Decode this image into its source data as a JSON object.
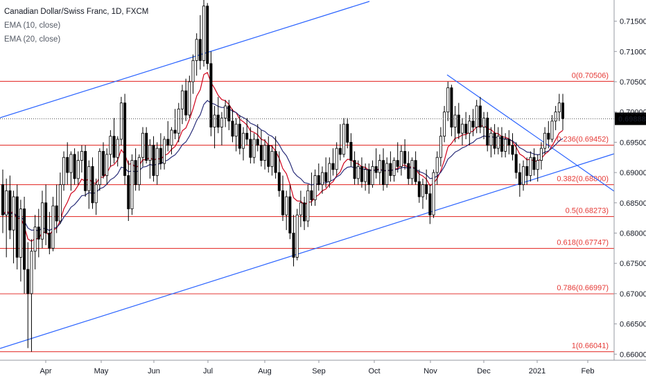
{
  "legend": {
    "symbol_title": "Canadian Dollar/Swiss Franc, 1D, FXCM",
    "ema_fast": "EMA (10, close)",
    "ema_slow": "EMA (20, close)"
  },
  "colors": {
    "up_candle": "#ffffff",
    "down_candle": "#000000",
    "candle_border": "#000000",
    "ema_fast": "#d0021b",
    "ema_slow": "#2a2e7a",
    "fib_lines": "#e53935",
    "trend_lines": "#2962ff",
    "price_label_bg": "#000000",
    "price_label_text": "#ffffff"
  },
  "chart_data": {
    "type": "candlestick",
    "title": "Canadian Dollar/Swiss Franc, 1D, FXCM",
    "ylim": [
      0.659,
      0.7185
    ],
    "y_ticks": [
      "0.71500",
      "0.71000",
      "0.70500",
      "0.70000",
      "0.69500",
      "0.69000",
      "0.68500",
      "0.68000",
      "0.67500",
      "0.67000",
      "0.66500",
      "0.66000"
    ],
    "x_tick_labels": [
      "Apr",
      "May",
      "Jun",
      "Jul",
      "Aug",
      "Sep",
      "Oct",
      "Nov",
      "Dec",
      "2021",
      "Feb"
    ],
    "last_price": "0.69888",
    "fib_levels": [
      {
        "label": "0(0.70506)",
        "value": 0.70506
      },
      {
        "label": "0.236(0.69452)",
        "value": 0.69452
      },
      {
        "label": "0.382(0.68800)",
        "value": 0.688
      },
      {
        "label": "0.5(0.68273)",
        "value": 0.68273
      },
      {
        "label": "0.618(0.67747)",
        "value": 0.67747
      },
      {
        "label": "0.786(0.66997)",
        "value": 0.66997
      },
      {
        "label": "1(0.66041)",
        "value": 0.66041
      }
    ],
    "candles": [
      {
        "o": 0.688,
        "h": 0.6905,
        "l": 0.68,
        "c": 0.683
      },
      {
        "o": 0.683,
        "h": 0.689,
        "l": 0.676,
        "c": 0.687
      },
      {
        "o": 0.687,
        "h": 0.6895,
        "l": 0.679,
        "c": 0.6805
      },
      {
        "o": 0.6805,
        "h": 0.687,
        "l": 0.675,
        "c": 0.686
      },
      {
        "o": 0.686,
        "h": 0.688,
        "l": 0.674,
        "c": 0.676
      },
      {
        "o": 0.676,
        "h": 0.6855,
        "l": 0.672,
        "c": 0.684
      },
      {
        "o": 0.684,
        "h": 0.686,
        "l": 0.67,
        "c": 0.674
      },
      {
        "o": 0.674,
        "h": 0.6785,
        "l": 0.661,
        "c": 0.67
      },
      {
        "o": 0.67,
        "h": 0.679,
        "l": 0.6604,
        "c": 0.677
      },
      {
        "o": 0.677,
        "h": 0.683,
        "l": 0.674,
        "c": 0.681
      },
      {
        "o": 0.681,
        "h": 0.684,
        "l": 0.676,
        "c": 0.679
      },
      {
        "o": 0.679,
        "h": 0.687,
        "l": 0.6775,
        "c": 0.685
      },
      {
        "o": 0.685,
        "h": 0.688,
        "l": 0.678,
        "c": 0.68
      },
      {
        "o": 0.68,
        "h": 0.6835,
        "l": 0.6765,
        "c": 0.6775
      },
      {
        "o": 0.6775,
        "h": 0.686,
        "l": 0.677,
        "c": 0.6845
      },
      {
        "o": 0.6845,
        "h": 0.688,
        "l": 0.68,
        "c": 0.682
      },
      {
        "o": 0.682,
        "h": 0.69,
        "l": 0.6815,
        "c": 0.688
      },
      {
        "o": 0.688,
        "h": 0.6935,
        "l": 0.687,
        "c": 0.6925
      },
      {
        "o": 0.6925,
        "h": 0.695,
        "l": 0.688,
        "c": 0.69
      },
      {
        "o": 0.69,
        "h": 0.6935,
        "l": 0.687,
        "c": 0.693
      },
      {
        "o": 0.693,
        "h": 0.694,
        "l": 0.688,
        "c": 0.689
      },
      {
        "o": 0.689,
        "h": 0.6935,
        "l": 0.688,
        "c": 0.692
      },
      {
        "o": 0.692,
        "h": 0.6945,
        "l": 0.69,
        "c": 0.6935
      },
      {
        "o": 0.6935,
        "h": 0.6945,
        "l": 0.686,
        "c": 0.687
      },
      {
        "o": 0.687,
        "h": 0.692,
        "l": 0.684,
        "c": 0.691
      },
      {
        "o": 0.691,
        "h": 0.6925,
        "l": 0.684,
        "c": 0.685
      },
      {
        "o": 0.685,
        "h": 0.689,
        "l": 0.683,
        "c": 0.688
      },
      {
        "o": 0.688,
        "h": 0.694,
        "l": 0.687,
        "c": 0.6935
      },
      {
        "o": 0.6935,
        "h": 0.695,
        "l": 0.689,
        "c": 0.6895
      },
      {
        "o": 0.6895,
        "h": 0.694,
        "l": 0.688,
        "c": 0.693
      },
      {
        "o": 0.693,
        "h": 0.697,
        "l": 0.691,
        "c": 0.696
      },
      {
        "o": 0.696,
        "h": 0.699,
        "l": 0.6915,
        "c": 0.6925
      },
      {
        "o": 0.6925,
        "h": 0.696,
        "l": 0.691,
        "c": 0.6955
      },
      {
        "o": 0.6955,
        "h": 0.7025,
        "l": 0.6945,
        "c": 0.7015
      },
      {
        "o": 0.7015,
        "h": 0.703,
        "l": 0.688,
        "c": 0.6895
      },
      {
        "o": 0.6895,
        "h": 0.692,
        "l": 0.682,
        "c": 0.684
      },
      {
        "o": 0.684,
        "h": 0.693,
        "l": 0.683,
        "c": 0.692
      },
      {
        "o": 0.692,
        "h": 0.694,
        "l": 0.687,
        "c": 0.688
      },
      {
        "o": 0.688,
        "h": 0.693,
        "l": 0.687,
        "c": 0.6925
      },
      {
        "o": 0.6925,
        "h": 0.6975,
        "l": 0.691,
        "c": 0.6965
      },
      {
        "o": 0.6965,
        "h": 0.6975,
        "l": 0.6915,
        "c": 0.692
      },
      {
        "o": 0.692,
        "h": 0.6955,
        "l": 0.689,
        "c": 0.6945
      },
      {
        "o": 0.6945,
        "h": 0.696,
        "l": 0.6885,
        "c": 0.6895
      },
      {
        "o": 0.6895,
        "h": 0.695,
        "l": 0.688,
        "c": 0.694
      },
      {
        "o": 0.694,
        "h": 0.6965,
        "l": 0.6905,
        "c": 0.6915
      },
      {
        "o": 0.6915,
        "h": 0.696,
        "l": 0.6905,
        "c": 0.6955
      },
      {
        "o": 0.6955,
        "h": 0.6985,
        "l": 0.6935,
        "c": 0.6945
      },
      {
        "o": 0.6945,
        "h": 0.6975,
        "l": 0.693,
        "c": 0.697
      },
      {
        "o": 0.697,
        "h": 0.7005,
        "l": 0.6955,
        "c": 0.6965
      },
      {
        "o": 0.6965,
        "h": 0.7015,
        "l": 0.695,
        "c": 0.7005
      },
      {
        "o": 0.7005,
        "h": 0.7045,
        "l": 0.698,
        "c": 0.7035
      },
      {
        "o": 0.7035,
        "h": 0.7055,
        "l": 0.6985,
        "c": 0.6995
      },
      {
        "o": 0.6995,
        "h": 0.706,
        "l": 0.699,
        "c": 0.705
      },
      {
        "o": 0.705,
        "h": 0.7095,
        "l": 0.703,
        "c": 0.7085
      },
      {
        "o": 0.7085,
        "h": 0.713,
        "l": 0.706,
        "c": 0.712
      },
      {
        "o": 0.712,
        "h": 0.716,
        "l": 0.707,
        "c": 0.7085
      },
      {
        "o": 0.7085,
        "h": 0.7185,
        "l": 0.7075,
        "c": 0.7175
      },
      {
        "o": 0.7175,
        "h": 0.718,
        "l": 0.707,
        "c": 0.708
      },
      {
        "o": 0.708,
        "h": 0.71,
        "l": 0.696,
        "c": 0.6975
      },
      {
        "o": 0.6975,
        "h": 0.701,
        "l": 0.694,
        "c": 0.6995
      },
      {
        "o": 0.6995,
        "h": 0.7025,
        "l": 0.6965,
        "c": 0.6975
      },
      {
        "o": 0.6975,
        "h": 0.7,
        "l": 0.6945,
        "c": 0.699
      },
      {
        "o": 0.699,
        "h": 0.702,
        "l": 0.6975,
        "c": 0.701
      },
      {
        "o": 0.701,
        "h": 0.702,
        "l": 0.697,
        "c": 0.6985
      },
      {
        "o": 0.6985,
        "h": 0.7005,
        "l": 0.695,
        "c": 0.696
      },
      {
        "o": 0.696,
        "h": 0.699,
        "l": 0.6935,
        "c": 0.698
      },
      {
        "o": 0.698,
        "h": 0.6995,
        "l": 0.693,
        "c": 0.694
      },
      {
        "o": 0.694,
        "h": 0.6975,
        "l": 0.692,
        "c": 0.6965
      },
      {
        "o": 0.6965,
        "h": 0.699,
        "l": 0.6945,
        "c": 0.6955
      },
      {
        "o": 0.6955,
        "h": 0.6975,
        "l": 0.6915,
        "c": 0.6925
      },
      {
        "o": 0.6925,
        "h": 0.6965,
        "l": 0.6915,
        "c": 0.6955
      },
      {
        "o": 0.6955,
        "h": 0.698,
        "l": 0.6935,
        "c": 0.6945
      },
      {
        "o": 0.6945,
        "h": 0.697,
        "l": 0.691,
        "c": 0.692
      },
      {
        "o": 0.692,
        "h": 0.6955,
        "l": 0.6905,
        "c": 0.6945
      },
      {
        "o": 0.6945,
        "h": 0.696,
        "l": 0.69,
        "c": 0.691
      },
      {
        "o": 0.691,
        "h": 0.6945,
        "l": 0.6895,
        "c": 0.6935
      },
      {
        "o": 0.6935,
        "h": 0.696,
        "l": 0.689,
        "c": 0.69
      },
      {
        "o": 0.69,
        "h": 0.6935,
        "l": 0.686,
        "c": 0.687
      },
      {
        "o": 0.687,
        "h": 0.6895,
        "l": 0.682,
        "c": 0.683
      },
      {
        "o": 0.683,
        "h": 0.687,
        "l": 0.6805,
        "c": 0.686
      },
      {
        "o": 0.686,
        "h": 0.688,
        "l": 0.679,
        "c": 0.68
      },
      {
        "o": 0.68,
        "h": 0.683,
        "l": 0.6745,
        "c": 0.676
      },
      {
        "o": 0.676,
        "h": 0.684,
        "l": 0.6755,
        "c": 0.683
      },
      {
        "o": 0.683,
        "h": 0.687,
        "l": 0.681,
        "c": 0.685
      },
      {
        "o": 0.685,
        "h": 0.686,
        "l": 0.6805,
        "c": 0.682
      },
      {
        "o": 0.682,
        "h": 0.688,
        "l": 0.681,
        "c": 0.687
      },
      {
        "o": 0.687,
        "h": 0.69,
        "l": 0.6845,
        "c": 0.6855
      },
      {
        "o": 0.6855,
        "h": 0.6905,
        "l": 0.6845,
        "c": 0.6895
      },
      {
        "o": 0.6895,
        "h": 0.6915,
        "l": 0.687,
        "c": 0.688
      },
      {
        "o": 0.688,
        "h": 0.691,
        "l": 0.6865,
        "c": 0.69
      },
      {
        "o": 0.69,
        "h": 0.6925,
        "l": 0.6875,
        "c": 0.6885
      },
      {
        "o": 0.6885,
        "h": 0.6925,
        "l": 0.6875,
        "c": 0.6915
      },
      {
        "o": 0.6915,
        "h": 0.694,
        "l": 0.6895,
        "c": 0.6905
      },
      {
        "o": 0.6905,
        "h": 0.695,
        "l": 0.6895,
        "c": 0.694
      },
      {
        "o": 0.694,
        "h": 0.698,
        "l": 0.692,
        "c": 0.693
      },
      {
        "o": 0.693,
        "h": 0.699,
        "l": 0.6925,
        "c": 0.698
      },
      {
        "o": 0.698,
        "h": 0.699,
        "l": 0.694,
        "c": 0.695
      },
      {
        "o": 0.695,
        "h": 0.6965,
        "l": 0.691,
        "c": 0.692
      },
      {
        "o": 0.692,
        "h": 0.6935,
        "l": 0.688,
        "c": 0.689
      },
      {
        "o": 0.689,
        "h": 0.692,
        "l": 0.688,
        "c": 0.691
      },
      {
        "o": 0.691,
        "h": 0.6925,
        "l": 0.6875,
        "c": 0.6885
      },
      {
        "o": 0.6885,
        "h": 0.6915,
        "l": 0.687,
        "c": 0.6905
      },
      {
        "o": 0.6905,
        "h": 0.6915,
        "l": 0.6865,
        "c": 0.688
      },
      {
        "o": 0.688,
        "h": 0.692,
        "l": 0.6875,
        "c": 0.691
      },
      {
        "o": 0.691,
        "h": 0.694,
        "l": 0.689,
        "c": 0.69
      },
      {
        "o": 0.69,
        "h": 0.693,
        "l": 0.688,
        "c": 0.692
      },
      {
        "o": 0.692,
        "h": 0.694,
        "l": 0.687,
        "c": 0.688
      },
      {
        "o": 0.688,
        "h": 0.6925,
        "l": 0.6875,
        "c": 0.6915
      },
      {
        "o": 0.6915,
        "h": 0.6935,
        "l": 0.6885,
        "c": 0.6895
      },
      {
        "o": 0.6895,
        "h": 0.6925,
        "l": 0.6885,
        "c": 0.692
      },
      {
        "o": 0.692,
        "h": 0.695,
        "l": 0.69,
        "c": 0.691
      },
      {
        "o": 0.691,
        "h": 0.6945,
        "l": 0.6895,
        "c": 0.6935
      },
      {
        "o": 0.6935,
        "h": 0.6955,
        "l": 0.6905,
        "c": 0.6915
      },
      {
        "o": 0.6915,
        "h": 0.6935,
        "l": 0.688,
        "c": 0.689
      },
      {
        "o": 0.689,
        "h": 0.6925,
        "l": 0.688,
        "c": 0.692
      },
      {
        "o": 0.692,
        "h": 0.6935,
        "l": 0.688,
        "c": 0.6885
      },
      {
        "o": 0.6885,
        "h": 0.6905,
        "l": 0.685,
        "c": 0.686
      },
      {
        "o": 0.686,
        "h": 0.689,
        "l": 0.684,
        "c": 0.688
      },
      {
        "o": 0.688,
        "h": 0.6905,
        "l": 0.6855,
        "c": 0.6865
      },
      {
        "o": 0.6865,
        "h": 0.688,
        "l": 0.6815,
        "c": 0.683
      },
      {
        "o": 0.683,
        "h": 0.6905,
        "l": 0.6825,
        "c": 0.69
      },
      {
        "o": 0.69,
        "h": 0.6935,
        "l": 0.688,
        "c": 0.6925
      },
      {
        "o": 0.6925,
        "h": 0.6975,
        "l": 0.691,
        "c": 0.696
      },
      {
        "o": 0.696,
        "h": 0.701,
        "l": 0.695,
        "c": 0.7
      },
      {
        "o": 0.7,
        "h": 0.705,
        "l": 0.6985,
        "c": 0.704
      },
      {
        "o": 0.704,
        "h": 0.7045,
        "l": 0.696,
        "c": 0.6975
      },
      {
        "o": 0.6975,
        "h": 0.701,
        "l": 0.695,
        "c": 0.6995
      },
      {
        "o": 0.6995,
        "h": 0.7015,
        "l": 0.6955,
        "c": 0.6965
      },
      {
        "o": 0.6965,
        "h": 0.699,
        "l": 0.6945,
        "c": 0.698
      },
      {
        "o": 0.698,
        "h": 0.7,
        "l": 0.6955,
        "c": 0.6965
      },
      {
        "o": 0.6965,
        "h": 0.6995,
        "l": 0.6945,
        "c": 0.6985
      },
      {
        "o": 0.6985,
        "h": 0.7005,
        "l": 0.696,
        "c": 0.6975
      },
      {
        "o": 0.6975,
        "h": 0.702,
        "l": 0.6965,
        "c": 0.701
      },
      {
        "o": 0.701,
        "h": 0.7025,
        "l": 0.6965,
        "c": 0.6975
      },
      {
        "o": 0.6975,
        "h": 0.7,
        "l": 0.6955,
        "c": 0.699
      },
      {
        "o": 0.699,
        "h": 0.7,
        "l": 0.6935,
        "c": 0.6945
      },
      {
        "o": 0.6945,
        "h": 0.6975,
        "l": 0.6925,
        "c": 0.6965
      },
      {
        "o": 0.6965,
        "h": 0.698,
        "l": 0.693,
        "c": 0.694
      },
      {
        "o": 0.694,
        "h": 0.6975,
        "l": 0.693,
        "c": 0.696
      },
      {
        "o": 0.696,
        "h": 0.6975,
        "l": 0.6925,
        "c": 0.6935
      },
      {
        "o": 0.6935,
        "h": 0.6965,
        "l": 0.6925,
        "c": 0.6955
      },
      {
        "o": 0.6955,
        "h": 0.697,
        "l": 0.693,
        "c": 0.6945
      },
      {
        "o": 0.6945,
        "h": 0.6965,
        "l": 0.692,
        "c": 0.693
      },
      {
        "o": 0.693,
        "h": 0.695,
        "l": 0.689,
        "c": 0.69
      },
      {
        "o": 0.69,
        "h": 0.6915,
        "l": 0.686,
        "c": 0.688
      },
      {
        "o": 0.688,
        "h": 0.692,
        "l": 0.687,
        "c": 0.691
      },
      {
        "o": 0.691,
        "h": 0.6925,
        "l": 0.688,
        "c": 0.6895
      },
      {
        "o": 0.6895,
        "h": 0.6935,
        "l": 0.6885,
        "c": 0.6925
      },
      {
        "o": 0.6925,
        "h": 0.694,
        "l": 0.6895,
        "c": 0.6905
      },
      {
        "o": 0.6905,
        "h": 0.693,
        "l": 0.6885,
        "c": 0.692
      },
      {
        "o": 0.692,
        "h": 0.695,
        "l": 0.6905,
        "c": 0.694
      },
      {
        "o": 0.694,
        "h": 0.6975,
        "l": 0.693,
        "c": 0.6965
      },
      {
        "o": 0.6965,
        "h": 0.6985,
        "l": 0.694,
        "c": 0.6955
      },
      {
        "o": 0.6955,
        "h": 0.6995,
        "l": 0.695,
        "c": 0.6985
      },
      {
        "o": 0.6985,
        "h": 0.701,
        "l": 0.697,
        "c": 0.7
      },
      {
        "o": 0.7,
        "h": 0.703,
        "l": 0.6985,
        "c": 0.7015
      },
      {
        "o": 0.7015,
        "h": 0.703,
        "l": 0.697,
        "c": 0.6989
      }
    ]
  }
}
